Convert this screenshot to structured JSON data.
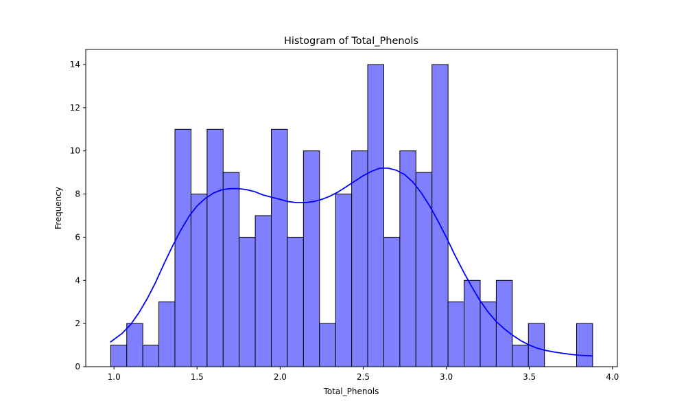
{
  "chart_data": {
    "type": "bar",
    "title": "Histogram of Total_Phenols",
    "xlabel": "Total_Phenols",
    "ylabel": "Frequency",
    "xlim": [
      0.83,
      4.03
    ],
    "ylim": [
      0,
      14.7
    ],
    "x_ticks": [
      1.0,
      1.5,
      2.0,
      2.5,
      3.0,
      3.5,
      4.0
    ],
    "x_tick_labels": [
      "1.0",
      "1.5",
      "2.0",
      "2.5",
      "3.0",
      "3.5",
      "4.0"
    ],
    "y_ticks": [
      0,
      2,
      4,
      6,
      8,
      10,
      12,
      14
    ],
    "y_tick_labels": [
      "0",
      "2",
      "4",
      "6",
      "8",
      "10",
      "12",
      "14"
    ],
    "bin_start": 0.98,
    "bin_width": 0.0967,
    "values": [
      1,
      2,
      1,
      3,
      11,
      8,
      11,
      9,
      6,
      7,
      11,
      6,
      10,
      2,
      8,
      10,
      14,
      6,
      10,
      9,
      14,
      3,
      4,
      3,
      4,
      1,
      2,
      0,
      0,
      2
    ],
    "bar_color": "#8080ff",
    "bar_edge_color": "#000000",
    "kde_color": "#0000ff",
    "kde_curve": {
      "x": [
        0.98,
        1.05,
        1.1,
        1.15,
        1.2,
        1.25,
        1.3,
        1.35,
        1.4,
        1.45,
        1.5,
        1.55,
        1.6,
        1.65,
        1.7,
        1.75,
        1.8,
        1.85,
        1.9,
        1.95,
        2.0,
        2.05,
        2.1,
        2.15,
        2.2,
        2.25,
        2.3,
        2.35,
        2.4,
        2.45,
        2.5,
        2.55,
        2.6,
        2.65,
        2.7,
        2.75,
        2.8,
        2.85,
        2.9,
        2.95,
        3.0,
        3.05,
        3.1,
        3.15,
        3.2,
        3.25,
        3.3,
        3.35,
        3.4,
        3.45,
        3.5,
        3.55,
        3.6,
        3.65,
        3.7,
        3.75,
        3.8,
        3.88
      ],
      "y": [
        1.15,
        1.55,
        1.95,
        2.5,
        3.15,
        3.9,
        4.75,
        5.55,
        6.3,
        6.95,
        7.45,
        7.8,
        8.05,
        8.2,
        8.25,
        8.25,
        8.2,
        8.1,
        7.95,
        7.85,
        7.75,
        7.65,
        7.6,
        7.6,
        7.65,
        7.75,
        7.9,
        8.1,
        8.35,
        8.6,
        8.85,
        9.05,
        9.2,
        9.2,
        9.1,
        8.9,
        8.55,
        8.05,
        7.45,
        6.75,
        6.0,
        5.2,
        4.45,
        3.75,
        3.1,
        2.55,
        2.1,
        1.75,
        1.45,
        1.2,
        1.0,
        0.85,
        0.75,
        0.68,
        0.62,
        0.57,
        0.53,
        0.5
      ]
    },
    "grid": false,
    "legend": "none"
  }
}
